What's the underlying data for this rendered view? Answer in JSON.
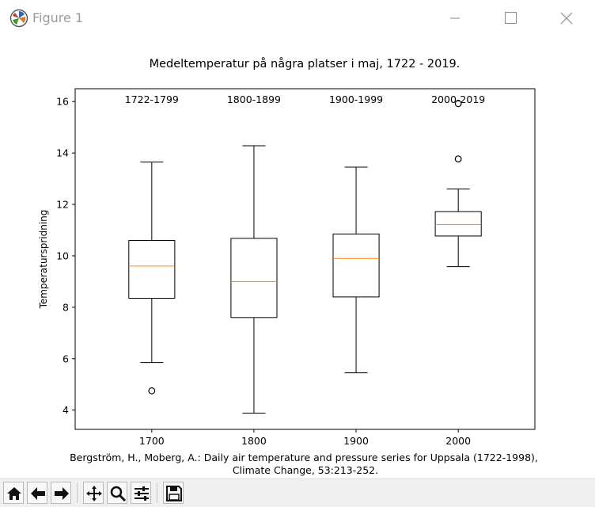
{
  "window": {
    "title": "Figure 1",
    "icon": "matplotlib-logo-icon",
    "controls": [
      "minimize-icon",
      "maximize-icon",
      "close-icon"
    ]
  },
  "chart_data": {
    "type": "box",
    "title": "Medeltemperatur på några platser i maj, 1722 - 2019.",
    "xlabel": "",
    "ylabel": "Temperaturspridning",
    "xticks": [
      "1700",
      "1800",
      "1900",
      "2000"
    ],
    "yticks": [
      4,
      6,
      8,
      10,
      12,
      14,
      16
    ],
    "ylim": [
      3.25,
      16.5
    ],
    "grid": false,
    "boxes": [
      {
        "label": "1722-1799",
        "whisker_low": 5.85,
        "q1": 8.35,
        "median": 9.6,
        "q3": 10.6,
        "whisker_high": 13.65,
        "outliers": [
          4.75
        ]
      },
      {
        "label": "1800-1899",
        "whisker_low": 3.88,
        "q1": 7.6,
        "median": 9.0,
        "q3": 10.68,
        "whisker_high": 14.28,
        "outliers": []
      },
      {
        "label": "1900-1999",
        "whisker_low": 5.45,
        "q1": 8.4,
        "median": 9.9,
        "q3": 10.85,
        "whisker_high": 13.45,
        "outliers": []
      },
      {
        "label": "2000-2019",
        "whisker_low": 9.58,
        "q1": 10.77,
        "median": 11.22,
        "q3": 11.72,
        "whisker_high": 12.6,
        "outliers": [
          13.77,
          15.92
        ]
      }
    ],
    "colors": {
      "box": "#000000",
      "median": "#ff7f0e"
    },
    "caption": [
      "Bergström, H., Moberg, A.: Daily air temperature and pressure series for Uppsala (1722-1998),",
      "Climate Change, 53:213-252."
    ]
  },
  "toolbar": {
    "buttons": [
      "home-icon",
      "back-icon",
      "forward-icon",
      "pan-icon",
      "zoom-icon",
      "configure-subplots-icon",
      "save-icon"
    ]
  }
}
